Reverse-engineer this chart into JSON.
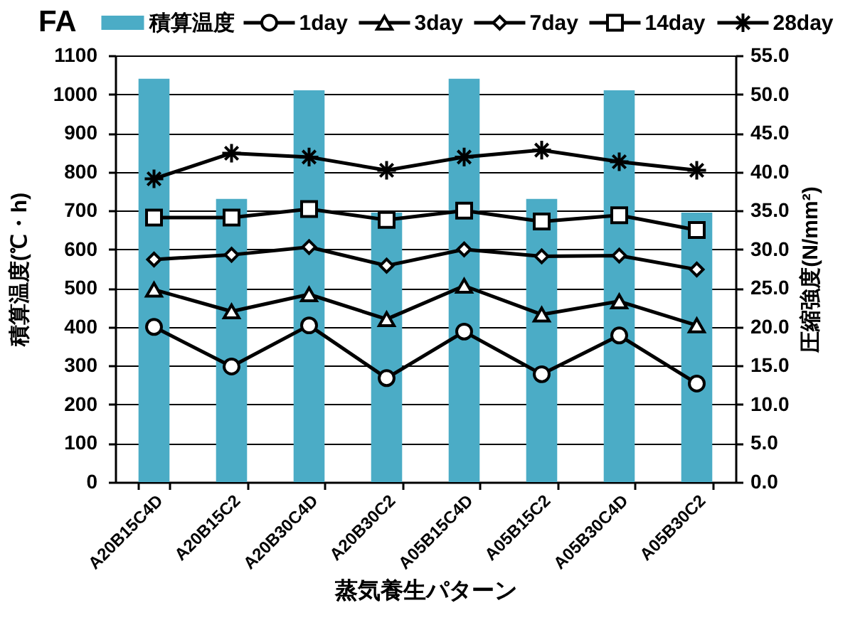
{
  "chart_data": {
    "type": "bar",
    "title": "FA",
    "categories": [
      "A20B15C4D",
      "A20B15C2",
      "A20B30C4D",
      "A20B30C2",
      "A05B15C4D",
      "A05B15C2",
      "A05B30C4D",
      "A05B30C2"
    ],
    "xlabel": "蒸気養生パターン",
    "ylabel": "積算温度(℃・h)",
    "y2label": "圧縮強度(N/mm²)",
    "series": [
      {
        "name": "積算温度",
        "color": "#4bacc6",
        "values": [
          1040,
          730,
          1010,
          695,
          1040,
          730,
          1010,
          695
        ]
      },
      {
        "name": "1day",
        "type": "line",
        "axis": "y2",
        "color": "#000000",
        "marker": "circle",
        "values": [
          20.0,
          14.9,
          20.2,
          13.4,
          19.4,
          13.9,
          18.9,
          12.7
        ]
      },
      {
        "name": "3day",
        "type": "line",
        "axis": "y2",
        "color": "#000000",
        "marker": "triangle",
        "values": [
          24.8,
          22.0,
          24.2,
          21.0,
          25.3,
          21.6,
          23.3,
          20.2
        ]
      },
      {
        "name": "7day",
        "type": "line",
        "axis": "y2",
        "color": "#000000",
        "marker": "diamond",
        "values": [
          28.7,
          29.3,
          30.3,
          27.9,
          30.0,
          29.1,
          29.2,
          27.4
        ]
      },
      {
        "name": "14day",
        "type": "line",
        "axis": "y2",
        "color": "#000000",
        "marker": "square",
        "values": [
          34.1,
          34.1,
          35.2,
          33.8,
          35.0,
          33.6,
          34.4,
          32.5
        ]
      },
      {
        "name": "28day",
        "type": "line",
        "axis": "y2",
        "color": "#000000",
        "marker": "cross",
        "values": [
          39.1,
          42.4,
          41.9,
          40.2,
          41.9,
          42.8,
          41.3,
          40.2
        ]
      }
    ],
    "ylim": [
      0,
      1100
    ],
    "yticks": [
      0,
      100,
      200,
      300,
      400,
      500,
      600,
      700,
      800,
      900,
      1000,
      1100
    ],
    "y2lim": [
      0,
      55
    ],
    "y2ticks": [
      {
        "value": 0,
        "label": "0.0"
      },
      {
        "value": 5,
        "label": "5.0"
      },
      {
        "value": 10,
        "label": "10.0"
      },
      {
        "value": 15,
        "label": "15.0"
      },
      {
        "value": 20,
        "label": "20.0"
      },
      {
        "value": 25,
        "label": "25.0"
      },
      {
        "value": 30,
        "label": "30.0"
      },
      {
        "value": 35,
        "label": "35.0"
      },
      {
        "value": 40,
        "label": "40.0"
      },
      {
        "value": 45,
        "label": "45.0"
      },
      {
        "value": 50,
        "label": "50.0"
      },
      {
        "value": 55,
        "label": "55.0"
      }
    ],
    "grid": "y",
    "legend": "top",
    "line_style": "solid"
  }
}
